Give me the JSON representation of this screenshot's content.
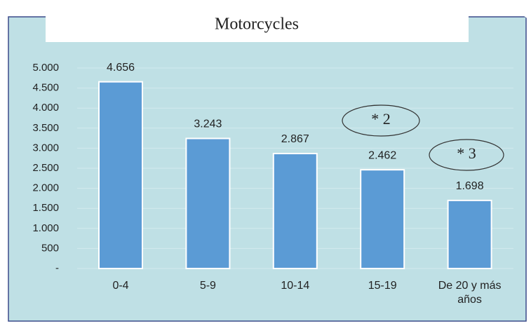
{
  "chart_data": {
    "type": "bar",
    "title": "Motorcycles",
    "categories": [
      "0-4",
      "5-9",
      "10-14",
      "15-19",
      "De 20 y más años"
    ],
    "values": [
      4656,
      3243,
      2867,
      2462,
      1698
    ],
    "value_labels": [
      "4.656",
      "3.243",
      "2.867",
      "2.462",
      "1.698"
    ],
    "color": "#5b9bd5",
    "ylim": [
      0,
      5000
    ],
    "yticks": [
      {
        "value": 0,
        "label": "-"
      },
      500,
      {
        "value": 1000,
        "label": "1.000"
      },
      {
        "value": 1500,
        "label": "1.500"
      },
      {
        "value": 2000,
        "label": "2.000"
      },
      {
        "value": 2500,
        "label": "2.500"
      },
      {
        "value": 3000,
        "label": "3.000"
      },
      {
        "value": 3500,
        "label": "3.500"
      },
      {
        "value": 4000,
        "label": "4.000"
      },
      {
        "value": 4500,
        "label": "4.500"
      },
      {
        "value": 5000,
        "label": "5.000"
      }
    ],
    "grid": true,
    "annotations": [
      "* 2",
      "* 3"
    ]
  }
}
